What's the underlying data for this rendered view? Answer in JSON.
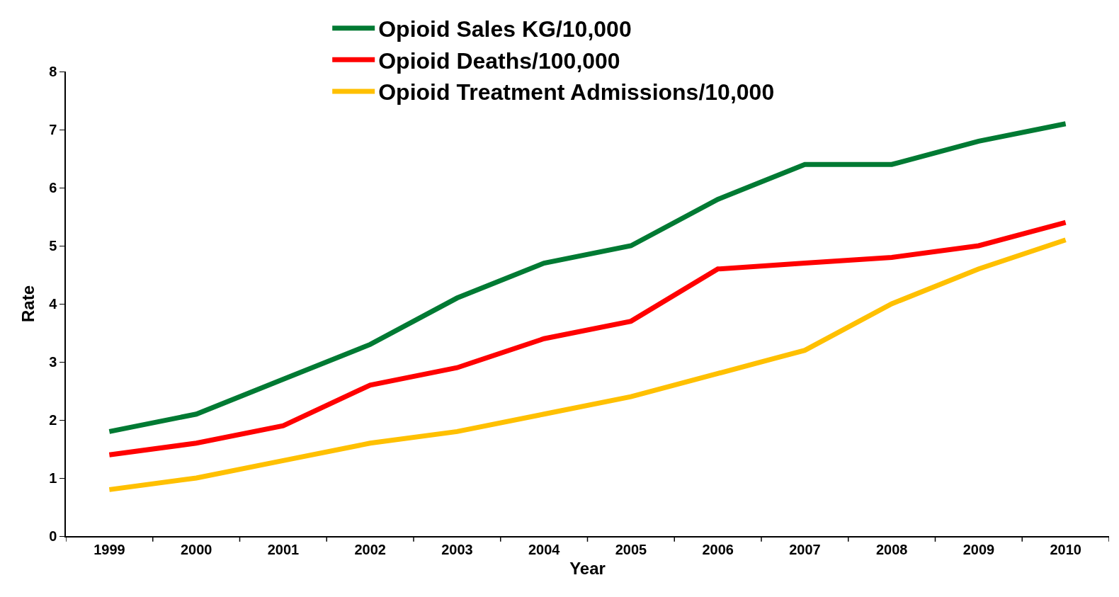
{
  "chart_data": {
    "type": "line",
    "xlabel": "Year",
    "ylabel": "Rate",
    "categories": [
      "1999",
      "2000",
      "2001",
      "2002",
      "2003",
      "2004",
      "2005",
      "2006",
      "2007",
      "2008",
      "2009",
      "2010"
    ],
    "series": [
      {
        "name": "Opioid Sales KG/10,000",
        "color": "#007a33",
        "values": [
          1.8,
          2.1,
          2.7,
          3.3,
          4.1,
          4.7,
          5.0,
          5.8,
          6.4,
          6.4,
          6.8,
          7.1
        ]
      },
      {
        "name": "Opioid Deaths/100,000",
        "color": "#ff0000",
        "values": [
          1.4,
          1.6,
          1.9,
          2.6,
          2.9,
          3.4,
          3.7,
          4.6,
          4.7,
          4.8,
          5.0,
          5.4
        ]
      },
      {
        "name": "Opioid Treatment Admissions/10,000",
        "color": "#ffc000",
        "values": [
          0.8,
          1.0,
          1.3,
          1.6,
          1.8,
          2.1,
          2.4,
          2.8,
          3.2,
          4.0,
          4.6,
          5.1
        ]
      }
    ],
    "ylim": [
      0,
      8
    ],
    "yticks": [
      0,
      1,
      2,
      3,
      4,
      5,
      6,
      7,
      8
    ],
    "legend": "top",
    "marker": "none",
    "line_style": "solid"
  }
}
